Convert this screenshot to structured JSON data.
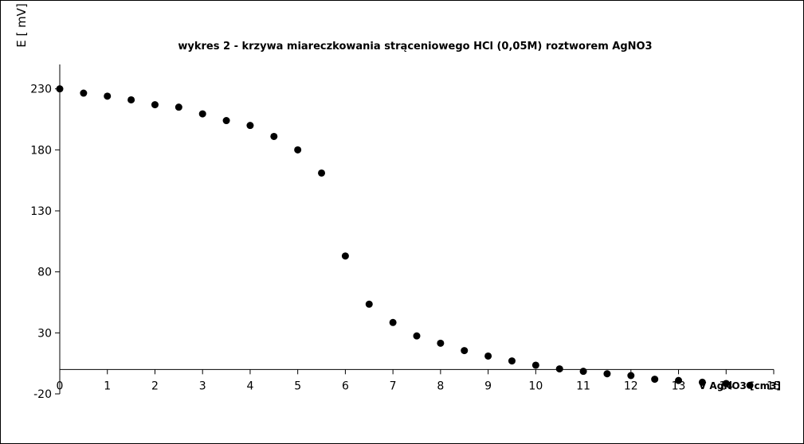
{
  "chart_data": {
    "type": "scatter",
    "title": "wykres 2 - krzywa miareczkowania strąceniowego HCl (0,05M) roztworem AgNO3",
    "x_label": "V AgNO3 [cm3]",
    "y_label": "E [ mV]",
    "x": [
      0,
      0.5,
      1,
      1.5,
      2,
      2.5,
      3,
      3.5,
      4,
      4.5,
      5,
      5.5,
      6,
      6.5,
      7,
      7.5,
      8,
      8.5,
      9,
      9.5,
      10,
      10.5,
      11,
      11.5,
      12,
      12.5,
      13,
      13.5,
      14,
      14.5
    ],
    "values": [
      230,
      226.5,
      224,
      221,
      217,
      215,
      209.5,
      204,
      200,
      191,
      180,
      161,
      93,
      53.5,
      38.5,
      27.5,
      21.5,
      15.5,
      11,
      7,
      3.5,
      0.5,
      -1.5,
      -3.5,
      -5,
      -8,
      -9,
      -10.5,
      -11.5,
      -13
    ],
    "color": "#000000",
    "xlim": [
      0,
      15
    ],
    "xticks": [
      0,
      1,
      2,
      3,
      4,
      5,
      6,
      7,
      8,
      9,
      10,
      11,
      12,
      13,
      14,
      15
    ],
    "ylim": [
      -20,
      250
    ],
    "yticks": [
      -20,
      30,
      80,
      130,
      180,
      230
    ],
    "grid": false
  }
}
